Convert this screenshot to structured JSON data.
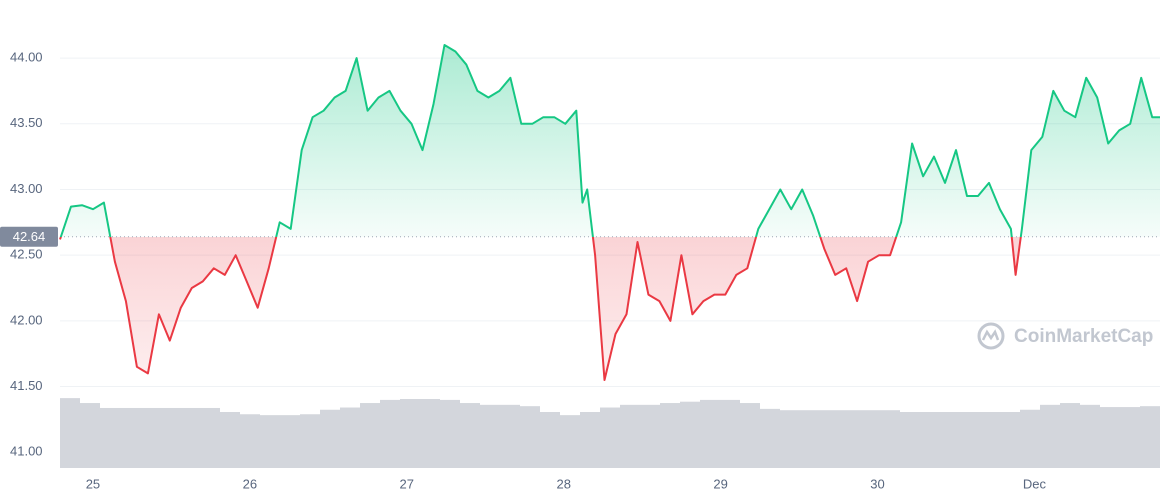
{
  "chart_data": {
    "type": "line",
    "x": [
      24.79,
      24.86,
      24.93,
      25.0,
      25.07,
      25.14,
      25.21,
      25.28,
      25.35,
      25.42,
      25.49,
      25.56,
      25.63,
      25.7,
      25.77,
      25.84,
      25.91,
      25.98,
      26.05,
      26.12,
      26.19,
      26.26,
      26.33,
      26.4,
      26.47,
      26.54,
      26.61,
      26.68,
      26.75,
      26.82,
      26.89,
      26.96,
      27.03,
      27.1,
      27.17,
      27.24,
      27.31,
      27.38,
      27.45,
      27.52,
      27.59,
      27.66,
      27.73,
      27.8,
      27.87,
      27.94,
      28.01,
      28.08,
      28.12,
      28.15,
      28.2,
      28.26,
      28.33,
      28.4,
      28.47,
      28.54,
      28.61,
      28.68,
      28.75,
      28.82,
      28.89,
      28.96,
      29.03,
      29.1,
      29.17,
      29.24,
      29.31,
      29.38,
      29.45,
      29.52,
      29.59,
      29.66,
      29.73,
      29.8,
      29.87,
      29.94,
      30.01,
      30.08,
      30.15,
      30.22,
      30.29,
      30.36,
      30.43,
      30.5,
      30.57,
      30.64,
      30.71,
      30.78,
      30.85,
      30.88,
      30.92,
      30.98,
      31.05,
      31.12,
      31.19,
      31.26,
      31.33,
      31.4,
      31.47,
      31.54,
      31.61,
      31.68,
      31.75,
      31.8
    ],
    "values": [
      42.62,
      42.87,
      42.88,
      42.85,
      42.9,
      42.45,
      42.15,
      41.65,
      41.6,
      42.05,
      41.85,
      42.1,
      42.25,
      42.3,
      42.4,
      42.35,
      42.5,
      42.3,
      42.1,
      42.4,
      42.75,
      42.7,
      43.3,
      43.55,
      43.6,
      43.7,
      43.75,
      44.0,
      43.6,
      43.7,
      43.75,
      43.6,
      43.5,
      43.3,
      43.65,
      44.1,
      44.05,
      43.95,
      43.75,
      43.7,
      43.75,
      43.85,
      43.5,
      43.5,
      43.55,
      43.55,
      43.5,
      43.6,
      42.9,
      43.0,
      42.5,
      41.55,
      41.9,
      42.05,
      42.6,
      42.2,
      42.15,
      42.0,
      42.5,
      42.05,
      42.15,
      42.2,
      42.2,
      42.35,
      42.4,
      42.7,
      42.85,
      43.0,
      42.85,
      43.0,
      42.8,
      42.55,
      42.35,
      42.4,
      42.15,
      42.45,
      42.5,
      42.5,
      42.75,
      43.35,
      43.1,
      43.25,
      43.05,
      43.3,
      42.95,
      42.95,
      43.05,
      42.85,
      42.7,
      42.35,
      42.7,
      43.3,
      43.4,
      43.75,
      43.6,
      43.55,
      43.85,
      43.7,
      43.35,
      43.45,
      43.5,
      43.85,
      43.55,
      43.55
    ],
    "baseline": 42.64,
    "up_color": "#16c784",
    "down_color": "#ea3943",
    "xlim": [
      24.79,
      31.8
    ],
    "xticks": [
      25,
      26,
      27,
      28,
      29,
      30,
      {
        "value": 31,
        "label": "Dec"
      }
    ],
    "ylim": [
      40.88,
      44.29
    ],
    "yticks": [
      {
        "value": 41,
        "label": "41.00"
      },
      {
        "value": 41.5,
        "label": "41.50"
      },
      {
        "value": 42,
        "label": "42.00"
      },
      {
        "value": 42.5,
        "label": "42.50"
      },
      {
        "value": 43,
        "label": "43.00"
      },
      {
        "value": 43.5,
        "label": "43.50"
      },
      {
        "value": 44,
        "label": "44.00"
      }
    ],
    "grid": true,
    "volume": {
      "color": "#d3d6dc",
      "values": [
        15.6,
        14.5,
        13.4,
        13.4,
        13.4,
        13.4,
        13.4,
        13.4,
        12.5,
        12.0,
        11.8,
        11.8,
        12.0,
        13.0,
        13.5,
        14.5,
        15.2,
        15.4,
        15.4,
        15.2,
        14.5,
        14.1,
        14.1,
        13.8,
        12.5,
        11.8,
        12.5,
        13.5,
        14.1,
        14.1,
        14.5,
        14.8,
        15.2,
        15.2,
        14.5,
        13.2,
        12.9,
        12.9,
        12.9,
        12.9,
        12.9,
        12.9,
        12.5,
        12.5,
        12.5,
        12.5,
        12.5,
        12.5,
        13.0,
        14.1,
        14.5,
        14.1,
        13.6,
        13.6,
        13.8
      ]
    },
    "y2lim": [
      0,
      100
    ],
    "watermark": "CoinMarketCap"
  }
}
